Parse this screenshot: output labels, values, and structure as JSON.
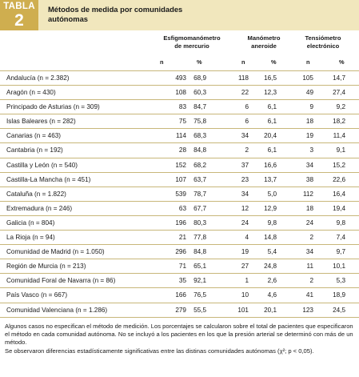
{
  "header": {
    "tabla_word": "TABLA",
    "tabla_number": "2",
    "title": "Métodos de medida por comunidades autónomas"
  },
  "columns": {
    "group1_line1": "Esfigmomanómetro",
    "group1_line2": "de mercurio",
    "group2_line1": "Manómetro",
    "group2_line2": "aneroide",
    "group3_line1": "Tensiómetro",
    "group3_line2": "electrónico",
    "n_label": "n",
    "pct_label": "%"
  },
  "rows": [
    {
      "name": "Andalucía (n = 2.382)",
      "v1n": "493",
      "v1p": "68,9",
      "v2n": "118",
      "v2p": "16,5",
      "v3n": "105",
      "v3p": "14,7"
    },
    {
      "name": "Aragón (n = 430)",
      "v1n": "108",
      "v1p": "60,3",
      "v2n": "22",
      "v2p": "12,3",
      "v3n": "49",
      "v3p": "27,4"
    },
    {
      "name": "Principado de Asturias (n = 309)",
      "v1n": "83",
      "v1p": "84,7",
      "v2n": "6",
      "v2p": "6,1",
      "v3n": "9",
      "v3p": "9,2"
    },
    {
      "name": "Islas Baleares (n = 282)",
      "v1n": "75",
      "v1p": "75,8",
      "v2n": "6",
      "v2p": "6,1",
      "v3n": "18",
      "v3p": "18,2"
    },
    {
      "name": "Canarias (n = 463)",
      "v1n": "114",
      "v1p": "68,3",
      "v2n": "34",
      "v2p": "20,4",
      "v3n": "19",
      "v3p": "11,4"
    },
    {
      "name": "Cantabria (n = 192)",
      "v1n": "28",
      "v1p": "84,8",
      "v2n": "2",
      "v2p": "6,1",
      "v3n": "3",
      "v3p": "9,1"
    },
    {
      "name": "Castilla y León (n = 540)",
      "v1n": "152",
      "v1p": "68,2",
      "v2n": "37",
      "v2p": "16,6",
      "v3n": "34",
      "v3p": "15,2"
    },
    {
      "name": "Castilla-La Mancha (n = 451)",
      "v1n": "107",
      "v1p": "63,7",
      "v2n": "23",
      "v2p": "13,7",
      "v3n": "38",
      "v3p": "22,6"
    },
    {
      "name": "Cataluña (n = 1.822)",
      "v1n": "539",
      "v1p": "78,7",
      "v2n": "34",
      "v2p": "5,0",
      "v3n": "112",
      "v3p": "16,4"
    },
    {
      "name": "Extremadura (n = 246)",
      "v1n": "63",
      "v1p": "67,7",
      "v2n": "12",
      "v2p": "12,9",
      "v3n": "18",
      "v3p": "19,4"
    },
    {
      "name": "Galicia (n = 804)",
      "v1n": "196",
      "v1p": "80,3",
      "v2n": "24",
      "v2p": "9,8",
      "v3n": "24",
      "v3p": "9,8"
    },
    {
      "name": "La Rioja (n = 94)",
      "v1n": "21",
      "v1p": "77,8",
      "v2n": "4",
      "v2p": "14,8",
      "v3n": "2",
      "v3p": "7,4"
    },
    {
      "name": "Comunidad de Madrid (n = 1.050)",
      "v1n": "296",
      "v1p": "84,8",
      "v2n": "19",
      "v2p": "5,4",
      "v3n": "34",
      "v3p": "9,7"
    },
    {
      "name": "Región de Murcia (n = 213)",
      "v1n": "71",
      "v1p": "65,1",
      "v2n": "27",
      "v2p": "24,8",
      "v3n": "11",
      "v3p": "10,1"
    },
    {
      "name": "Comunidad Foral de Navarra (n = 86)",
      "v1n": "35",
      "v1p": "92,1",
      "v2n": "1",
      "v2p": "2,6",
      "v3n": "2",
      "v3p": "5,3"
    },
    {
      "name": "País Vasco (n = 667)",
      "v1n": "166",
      "v1p": "76,5",
      "v2n": "10",
      "v2p": "4,6",
      "v3n": "41",
      "v3p": "18,9"
    },
    {
      "name": "Comunidad Valenciana (n = 1.286)",
      "v1n": "279",
      "v1p": "55,5",
      "v2n": "101",
      "v2p": "20,1",
      "v3n": "123",
      "v3p": "24,5"
    }
  ],
  "footnote": {
    "line1": "Algunos casos no especifican el método de medición. Los porcentajes se calcularon sobre el total de pacientes que especificaron el método en cada comunidad autónoma. No se incluyó a los pacientes en los que la presión arterial se determinó con más de un método.",
    "line2": "Se observaron diferencias estadísticamente significativas entre las distinas comunidades autónomas (χ²; p < 0,05)."
  }
}
